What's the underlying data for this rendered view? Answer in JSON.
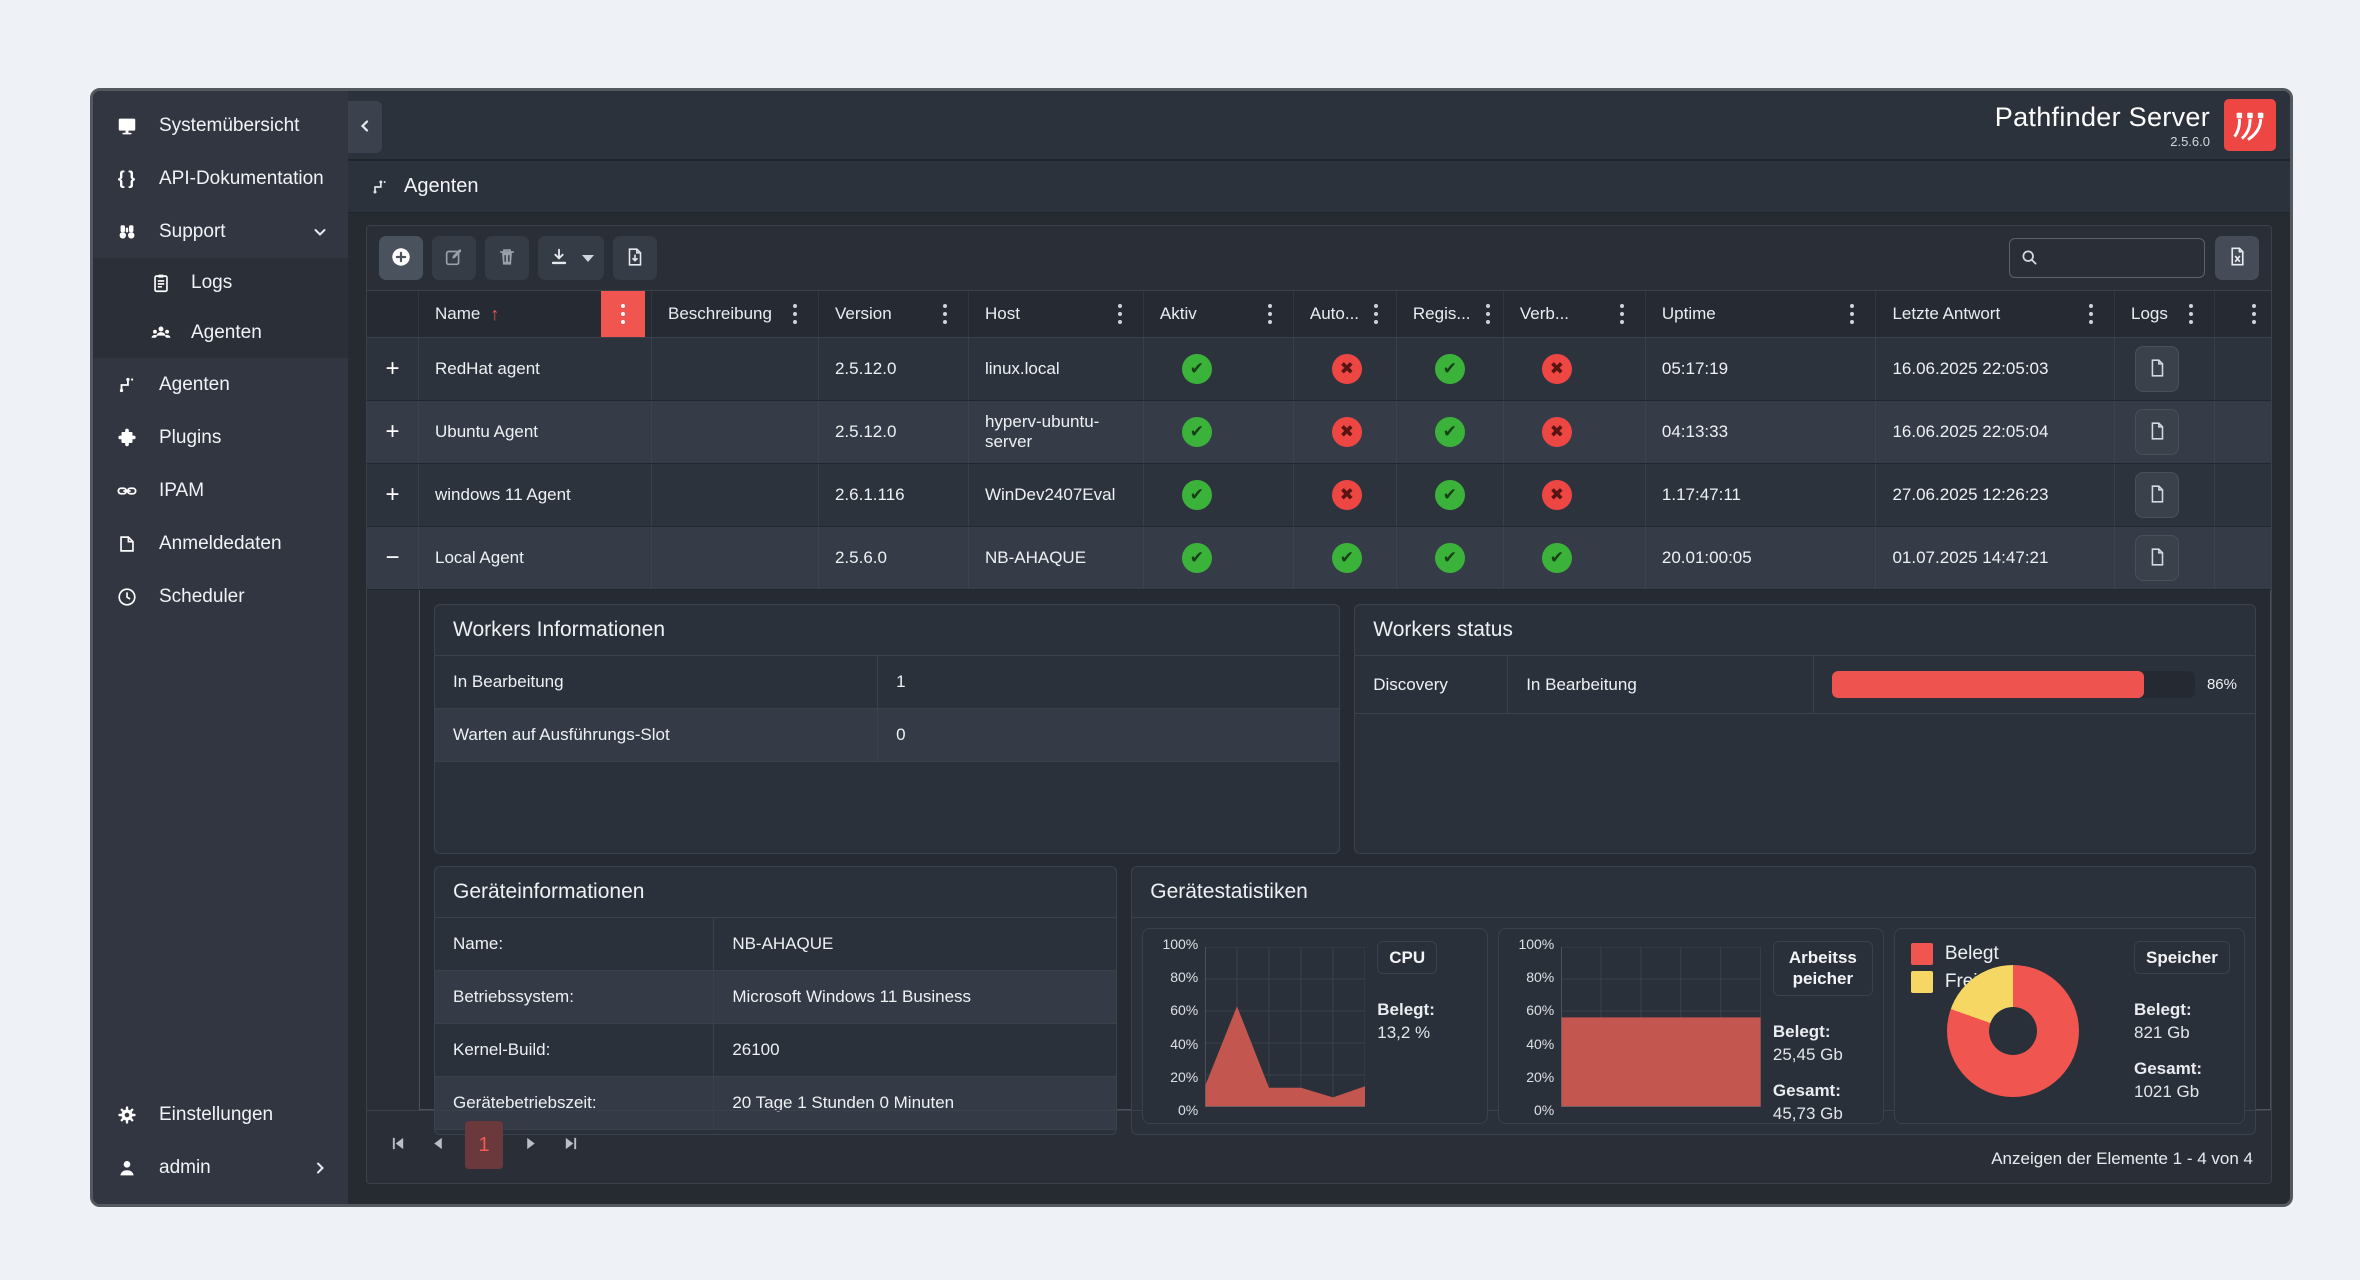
{
  "app": {
    "title": "Pathfinder Server",
    "version": "2.5.6.0"
  },
  "sidebar": {
    "items": [
      {
        "label": "Systemübersicht",
        "icon": "monitor-icon"
      },
      {
        "label": "API-Dokumentation",
        "icon": "code-braces-icon"
      },
      {
        "label": "Support",
        "icon": "binoculars-icon",
        "chevron": "down"
      },
      {
        "label": "Logs",
        "icon": "clipboard-icon",
        "sub": true
      },
      {
        "label": "Agenten",
        "icon": "users-group-icon",
        "sub": true
      },
      {
        "label": "Agenten",
        "icon": "agent-node-icon"
      },
      {
        "label": "Plugins",
        "icon": "puzzle-icon"
      },
      {
        "label": "IPAM",
        "icon": "link-icon"
      },
      {
        "label": "Anmeldedaten",
        "icon": "credentials-icon"
      },
      {
        "label": "Scheduler",
        "icon": "clock-icon"
      }
    ],
    "bottom": [
      {
        "label": "Einstellungen",
        "icon": "gear-icon"
      },
      {
        "label": "admin",
        "icon": "user-icon",
        "chevron": "right"
      }
    ]
  },
  "section": {
    "title": "Agenten",
    "icon": "agent-node-icon"
  },
  "toolbar": {
    "buttons": [
      {
        "icon": "add-circle-icon"
      },
      {
        "icon": "edit-icon"
      },
      {
        "icon": "delete-icon"
      },
      {
        "icon": "download-icon",
        "caret": true
      },
      {
        "icon": "file-import-icon"
      }
    ],
    "search_icon": "search-icon",
    "excel_export_icon": "excel-export-icon"
  },
  "search": {
    "value": "",
    "placeholder": ""
  },
  "table": {
    "columns": {
      "name": "Name",
      "beschreibung": "Beschreibung",
      "version": "Version",
      "host": "Host",
      "aktiv": "Aktiv",
      "auto": "Auto...",
      "regis": "Regis...",
      "verb": "Verb...",
      "uptime": "Uptime",
      "letzte_antwort": "Letzte Antwort",
      "logs": "Logs"
    },
    "sort": {
      "column": "Name",
      "direction": "asc"
    },
    "rows": [
      {
        "expand": "+",
        "name": "RedHat agent",
        "beschreibung": "",
        "version": "2.5.12.0",
        "host": "linux.local",
        "aktiv": "check",
        "auto": "cross",
        "regis": "check",
        "verb": "cross",
        "uptime": "05:17:19",
        "letzte_antwort": "16.06.2025 22:05:03"
      },
      {
        "expand": "+",
        "name": "Ubuntu Agent",
        "beschreibung": "",
        "version": "2.5.12.0",
        "host": "hyperv-ubuntu-server",
        "aktiv": "check",
        "auto": "cross",
        "regis": "check",
        "verb": "cross",
        "uptime": "04:13:33",
        "letzte_antwort": "16.06.2025 22:05:04"
      },
      {
        "expand": "+",
        "name": "windows 11 Agent",
        "beschreibung": "",
        "version": "2.6.1.116",
        "host": "WinDev2407Eval",
        "aktiv": "check",
        "auto": "cross",
        "regis": "check",
        "verb": "cross",
        "uptime": "1.17:47:11",
        "letzte_antwort": "27.06.2025 12:26:23"
      },
      {
        "expand": "−",
        "name": "Local Agent",
        "beschreibung": "",
        "version": "2.5.6.0",
        "host": "NB-AHAQUE",
        "aktiv": "check",
        "auto": "check",
        "regis": "check",
        "verb": "check",
        "uptime": "20.01:00:05",
        "letzte_antwort": "01.07.2025 14:47:21"
      }
    ]
  },
  "detail": {
    "workers_info": {
      "title": "Workers Informationen",
      "rows": [
        {
          "label": "In Bearbeitung",
          "value": "1"
        },
        {
          "label": "Warten auf Ausführungs-Slot",
          "value": "0"
        }
      ]
    },
    "workers_status": {
      "title": "Workers status",
      "worker": "Discovery",
      "status": "In Bearbeitung",
      "percent_label": "86%"
    },
    "device_info": {
      "title": "Geräteinformationen",
      "rows": [
        {
          "label": "Name:",
          "value": "NB-AHAQUE"
        },
        {
          "label": "Betriebssystem:",
          "value": "Microsoft Windows 11 Business"
        },
        {
          "label": "Kernel-Build:",
          "value": "26100"
        },
        {
          "label": "Gerätebetriebszeit:",
          "value": "20 Tage 1 Stunden 0 Minuten"
        }
      ]
    },
    "device_stats": {
      "title": "Gerätestatistiken",
      "y_ticks": [
        "100%",
        "80%",
        "60%",
        "40%",
        "20%",
        "0%"
      ],
      "cpu": {
        "title": "CPU",
        "belegt_label": "Belegt:",
        "belegt": "13,2 %"
      },
      "ram": {
        "title": "Arbeitsspeicher",
        "belegt_label": "Belegt:",
        "belegt": "25,45 Gb",
        "gesamt_label": "Gesamt:",
        "gesamt": "45,73 Gb"
      },
      "storage": {
        "title": "Speicher",
        "legend": [
          {
            "label": "Belegt",
            "color": "#f05550"
          },
          {
            "label": "Frei",
            "color": "#f6d763"
          }
        ],
        "belegt_label": "Belegt:",
        "belegt": "821 Gb",
        "gesamt_label": "Gesamt:",
        "gesamt": "1021 Gb"
      }
    }
  },
  "chart_data": [
    {
      "id": "cpu",
      "type": "area",
      "title": "CPU",
      "values": [
        13,
        63,
        12,
        12,
        6,
        13
      ],
      "ylim": [
        0,
        100
      ],
      "y_tick_labels": [
        "0%",
        "20%",
        "40%",
        "60%",
        "80%",
        "100%"
      ],
      "color": "#c3564f"
    },
    {
      "id": "ram",
      "type": "area",
      "title": "Arbeitsspeicher",
      "values": [
        56,
        56,
        56,
        56,
        56,
        56
      ],
      "ylim": [
        0,
        100
      ],
      "y_tick_labels": [
        "0%",
        "20%",
        "40%",
        "60%",
        "80%",
        "100%"
      ],
      "color": "#c3564f"
    },
    {
      "id": "storage",
      "type": "donut",
      "title": "Speicher",
      "slices": [
        {
          "label": "Belegt",
          "value": 80.4,
          "color": "#f05550"
        },
        {
          "label": "Frei",
          "value": 19.6,
          "color": "#f6d763"
        }
      ]
    },
    {
      "id": "workers-progress",
      "type": "progress",
      "value": 86,
      "color": "#ef5350"
    }
  ],
  "pagination": {
    "current": "1"
  },
  "footer": {
    "summary": "Anzeigen der Elemente 1 - 4 von 4"
  },
  "colors": {
    "accent_red": "#ef5350",
    "success_green": "#3bb33a",
    "warn_yellow": "#f6d763",
    "area_fill": "#c3564f",
    "sidebar_bg": "#313640",
    "panel_bg": "#2b313b"
  }
}
